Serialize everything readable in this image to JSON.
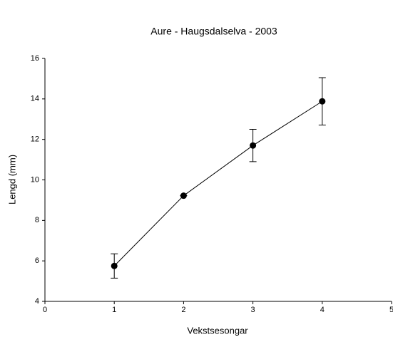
{
  "chart_data": {
    "type": "line",
    "title": "Aure - Haugsdalselva - 2003",
    "x_label": "Vekstsesongar",
    "y_label": "Lengd (mm)",
    "x": [
      1,
      2,
      3,
      4
    ],
    "values": [
      5.75,
      9.22,
      11.7,
      13.88
    ],
    "errors": [
      0.6,
      0,
      0.8,
      1.17
    ],
    "color": "#000000",
    "xlim": [
      0,
      5
    ],
    "xticks": [
      0,
      1,
      2,
      3,
      4,
      5
    ],
    "ylim": [
      4,
      16
    ],
    "yticks": [
      4,
      6,
      8,
      10,
      12,
      14,
      16
    ],
    "grid": false
  }
}
